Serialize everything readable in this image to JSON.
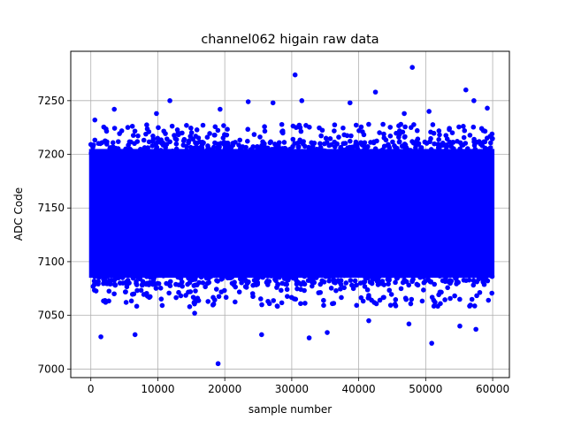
{
  "chart_data": {
    "type": "scatter",
    "title": "channel062 higain raw data",
    "xlabel": "sample number",
    "ylabel": "ADC Code",
    "xlim": [
      -3000,
      62500
    ],
    "ylim": [
      6992,
      7296
    ],
    "xticks": [
      0,
      10000,
      20000,
      30000,
      40000,
      50000,
      60000
    ],
    "yticks": [
      7000,
      7050,
      7100,
      7150,
      7200,
      7250
    ],
    "grid": true,
    "marker_color": "#0000ff",
    "series": [
      {
        "x_range": [
          0,
          60000
        ],
        "core_range": [
          7085,
          7205
        ],
        "outliers": [
          [
            600,
            7232
          ],
          [
            1500,
            7030
          ],
          [
            3500,
            7242
          ],
          [
            5200,
            7205
          ],
          [
            6600,
            7032
          ],
          [
            9800,
            7238
          ],
          [
            11800,
            7250
          ],
          [
            15500,
            7052
          ],
          [
            19000,
            7005
          ],
          [
            19300,
            7242
          ],
          [
            23500,
            7249
          ],
          [
            25500,
            7032
          ],
          [
            27200,
            7248
          ],
          [
            30500,
            7274
          ],
          [
            31500,
            7250
          ],
          [
            32600,
            7029
          ],
          [
            35300,
            7034
          ],
          [
            38700,
            7248
          ],
          [
            41500,
            7045
          ],
          [
            42500,
            7258
          ],
          [
            46800,
            7238
          ],
          [
            47500,
            7042
          ],
          [
            48000,
            7281
          ],
          [
            50500,
            7240
          ],
          [
            50900,
            7024
          ],
          [
            55100,
            7040
          ],
          [
            56000,
            7260
          ],
          [
            57200,
            7250
          ],
          [
            57500,
            7037
          ],
          [
            59200,
            7243
          ]
        ]
      }
    ]
  }
}
